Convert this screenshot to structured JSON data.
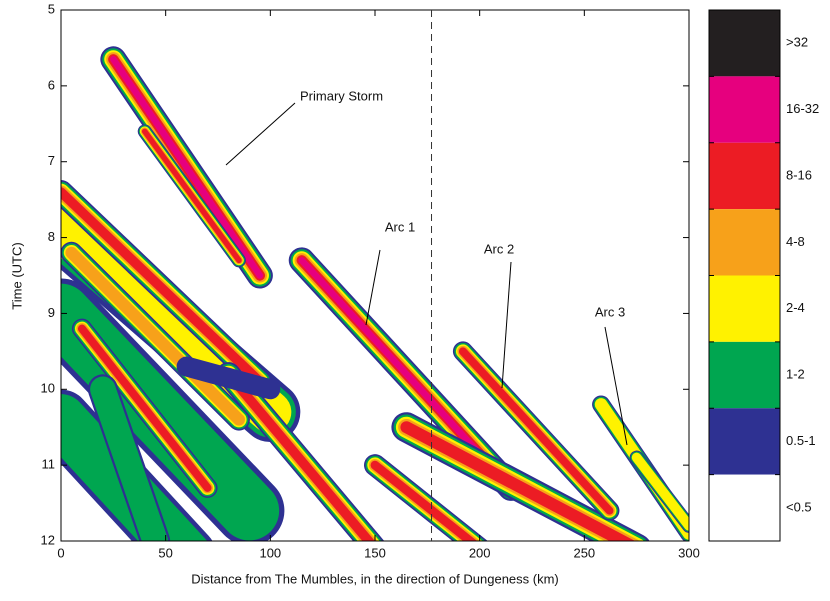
{
  "chart_data": {
    "type": "hovmoller",
    "xlabel": "Distance from The Mumbles, in the direction of Dungeness (km)",
    "ylabel": "Time (UTC)",
    "xlim": [
      0,
      300
    ],
    "xticks": [
      0,
      50,
      100,
      150,
      200,
      250,
      300
    ],
    "ylim": [
      5,
      12
    ],
    "yticks": [
      5,
      6,
      7,
      8,
      9,
      10,
      11,
      12
    ],
    "y_reversed": true,
    "reference_line_x": 177,
    "annotations": [
      "Primary Storm",
      "Arc 1",
      "Arc 2",
      "Arc 3"
    ],
    "colorbar": {
      "labels": [
        ">32",
        "16-32",
        "8-16",
        "4-8",
        "2-4",
        "1-2",
        "0.5-1",
        "<0.5"
      ],
      "colors": [
        "#231f20",
        "#e6007e",
        "#ec1c24",
        "#f7a11a",
        "#fff200",
        "#00a650",
        "#2e3192",
        "#ffffff"
      ]
    }
  }
}
